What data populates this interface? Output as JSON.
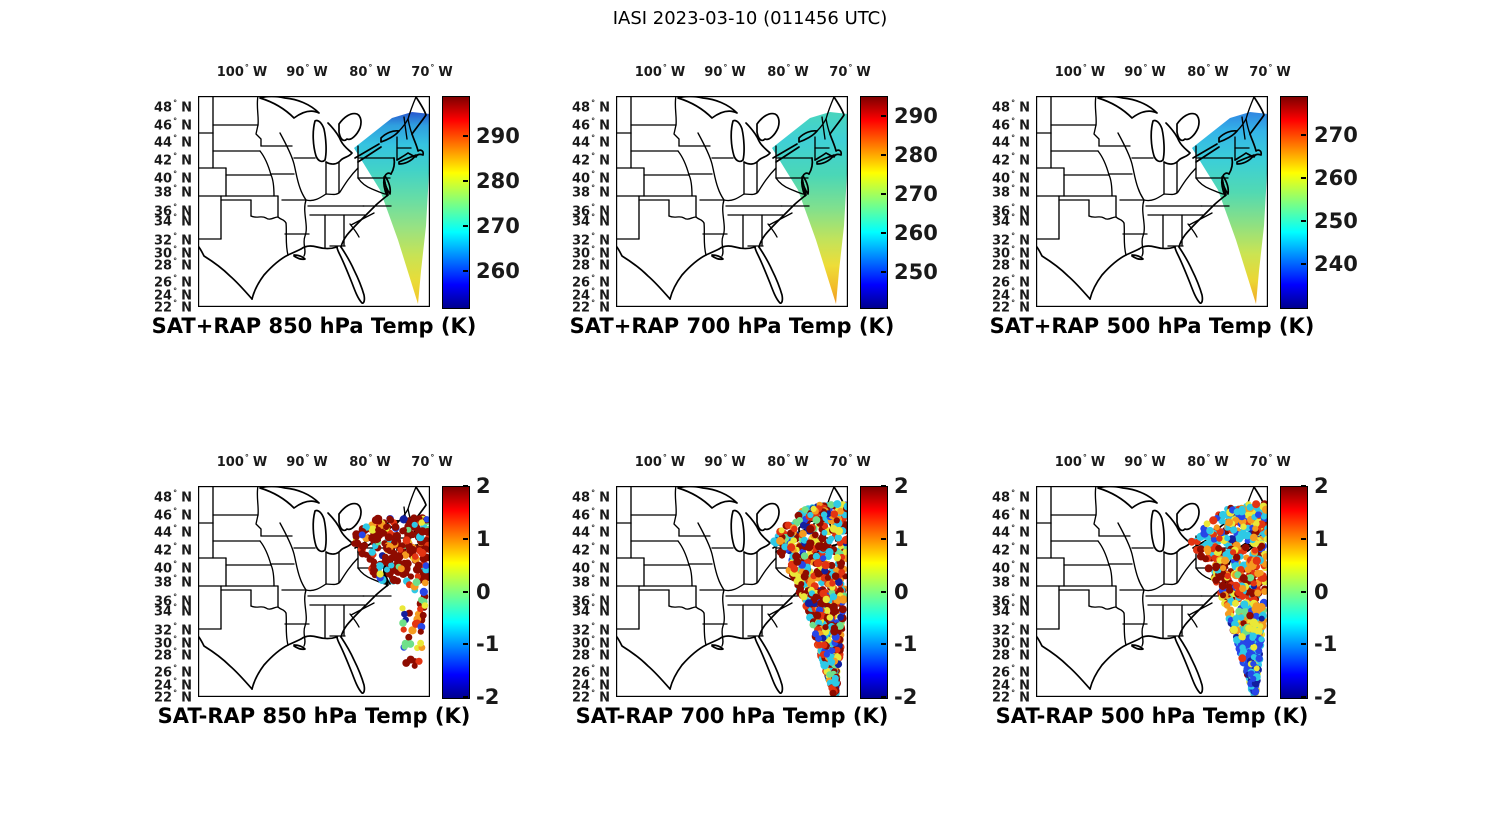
{
  "page_title": "IASI 2023-03-10 (011456 UTC)",
  "chart_data": {
    "type": "scatter",
    "description": "Six-panel geographic figure of IASI satellite soundings over the eastern United States. Top row: retrieved temperature (SAT+RAP) at 850/700/500 hPa shown as a smooth colored swath. Bottom row: satellite minus RAP model temperature differences (SAT-RAP) at the same levels shown as colored scatter dots. Data lie in a wedge-shaped satellite swath along the US east coast and western Atlantic.",
    "geo_axes": {
      "lon_ticks": [
        "100",
        "90",
        "80",
        "70"
      ],
      "lon_dir": "W",
      "lat_ticks": [
        "48",
        "46",
        "44",
        "42",
        "40",
        "38",
        "36",
        "34",
        "32",
        "30",
        "28",
        "26",
        "24",
        "22"
      ],
      "lat_dir": "N",
      "degree_symbol": "°"
    },
    "colormap": {
      "name": "jet",
      "stops": [
        "#00008f",
        "#0000ff",
        "#00ffff",
        "#7fff7f",
        "#ffff00",
        "#ff0000",
        "#7f0000"
      ]
    },
    "scatter_palette": {
      "darkred": "#8e0b00",
      "red": "#e33412",
      "orange": "#f59b20",
      "yellow": "#eae838",
      "green": "#6fe08a",
      "cyan": "#2ec9e6",
      "blue": "#2746e8",
      "darkblue": "#131f9e"
    },
    "panels": [
      {
        "title": "SAT+RAP 850 hPa Temp (K)",
        "kind": "field",
        "colorbar": {
          "vmin": 252,
          "vmax": 299,
          "ticks": [
            290,
            280,
            270,
            260
          ]
        },
        "swath_values_K": {
          "47N": 268,
          "42N": 271,
          "36N": 274,
          "30N": 279,
          "26N": 282,
          "22N": 284
        },
        "gradient": [
          [
            0,
            "#2857cf"
          ],
          [
            0.07,
            "#2f9fdf"
          ],
          [
            0.17,
            "#35c3e0"
          ],
          [
            0.3,
            "#41d2c8"
          ],
          [
            0.45,
            "#66dda6"
          ],
          [
            0.6,
            "#97e283"
          ],
          [
            0.75,
            "#c8e354"
          ],
          [
            0.88,
            "#e9dc38"
          ],
          [
            1,
            "#f2c52b"
          ]
        ]
      },
      {
        "title": "SAT+RAP 700 hPa Temp (K)",
        "kind": "field",
        "colorbar": {
          "vmin": 241,
          "vmax": 295,
          "ticks": [
            290,
            280,
            270,
            260,
            250
          ]
        },
        "swath_values_K": {
          "47N": 261,
          "42N": 262,
          "36N": 265,
          "30N": 271,
          "26N": 276,
          "22N": 281
        },
        "gradient": [
          [
            0,
            "#49d5bd"
          ],
          [
            0.15,
            "#3fd0d6"
          ],
          [
            0.33,
            "#4bd7b6"
          ],
          [
            0.5,
            "#80e08e"
          ],
          [
            0.66,
            "#c0e35c"
          ],
          [
            0.8,
            "#eedd38"
          ],
          [
            0.92,
            "#f2ba29"
          ],
          [
            1,
            "#ef9621"
          ]
        ]
      },
      {
        "title": "SAT+RAP 500 hPa Temp (K)",
        "kind": "field",
        "colorbar": {
          "vmin": 230,
          "vmax": 279,
          "ticks": [
            270,
            260,
            250,
            240
          ]
        },
        "swath_values_K": {
          "47N": 241,
          "42N": 245,
          "36N": 250,
          "30N": 256,
          "26N": 261,
          "22N": 265
        },
        "gradient": [
          [
            0,
            "#2f86e2"
          ],
          [
            0.1,
            "#34b4e8"
          ],
          [
            0.25,
            "#3bcfd8"
          ],
          [
            0.42,
            "#52d9b2"
          ],
          [
            0.58,
            "#8ce084"
          ],
          [
            0.74,
            "#cbe452"
          ],
          [
            0.88,
            "#ecd634"
          ],
          [
            1,
            "#f0a626"
          ]
        ]
      },
      {
        "title": "SAT-RAP 850 hPa Temp (K)",
        "kind": "diff",
        "colorbar": {
          "vmin": -2,
          "vmax": 2,
          "ticks": [
            2,
            1,
            0,
            -1,
            -2
          ]
        },
        "difference_summary": "Dense cluster of mostly +1.5 to +2 K (dark red) over NY, PA and New England with scattered 0 to -1 K dots; sparse column of mixed -2 to +2 K dots offshore between 30N and 38N.",
        "bands": [
          {
            "y": [
              32,
              95
            ],
            "n": 230,
            "weights": {
              "darkred": 0.7,
              "red": 0.08,
              "orange": 0.05,
              "yellow": 0.04,
              "green": 0.03,
              "cyan": 0.06,
              "blue": 0.03,
              "darkblue": 0.01
            }
          },
          {
            "y": [
              95,
              165
            ],
            "n": 40,
            "xmin": 207,
            "weights": {
              "darkred": 0.24,
              "red": 0.15,
              "orange": 0.15,
              "yellow": 0.12,
              "green": 0.08,
              "cyan": 0.14,
              "blue": 0.09,
              "darkblue": 0.03
            }
          },
          {
            "y": [
              165,
              182
            ],
            "n": 5,
            "xmin": 205,
            "weights": {
              "darkred": 0.8,
              "red": 0.2
            }
          }
        ]
      },
      {
        "title": "SAT-RAP 700 hPa Temp (K)",
        "kind": "diff",
        "colorbar": {
          "vmin": -2,
          "vmax": 2,
          "ticks": [
            2,
            1,
            0,
            -1,
            -2
          ]
        },
        "difference_summary": "Full swath of densely mixed differences; warm (+1 to +2 K, red/dark red) dominates with interspersed cool cyan/blue (-0.5 to -2 K) dots, cooler values more frequent south of 30N.",
        "bands": [
          {
            "y": [
              18,
              70
            ],
            "n": 240,
            "weights": {
              "darkred": 0.25,
              "red": 0.2,
              "orange": 0.13,
              "yellow": 0.12,
              "green": 0.05,
              "cyan": 0.12,
              "blue": 0.08,
              "darkblue": 0.05
            }
          },
          {
            "y": [
              70,
              140
            ],
            "n": 280,
            "weights": {
              "darkred": 0.32,
              "red": 0.18,
              "orange": 0.12,
              "yellow": 0.12,
              "green": 0.04,
              "cyan": 0.12,
              "blue": 0.06,
              "darkblue": 0.04
            }
          },
          {
            "y": [
              140,
              208
            ],
            "n": 260,
            "weights": {
              "darkred": 0.22,
              "red": 0.13,
              "orange": 0.1,
              "yellow": 0.14,
              "green": 0.06,
              "cyan": 0.21,
              "blue": 0.09,
              "darkblue": 0.05
            }
          }
        ]
      },
      {
        "title": "SAT-RAP 500 hPa Temp (K)",
        "kind": "diff",
        "colorbar": {
          "vmin": -2,
          "vmax": 2,
          "ticks": [
            2,
            1,
            0,
            -1,
            -2
          ]
        },
        "difference_summary": "Mixed cyan/orange differences over New England, strong warm band (+1 to +2 K) near 36-42N, mixed yellow/cyan 30-36N, and predominantly cool (-1 to -2 K, blue) south of 30N.",
        "bands": [
          {
            "y": [
              18,
              60
            ],
            "n": 200,
            "weights": {
              "cyan": 0.3,
              "blue": 0.12,
              "yellow": 0.14,
              "orange": 0.17,
              "red": 0.14,
              "darkred": 0.07,
              "green": 0.04,
              "darkblue": 0.02
            }
          },
          {
            "y": [
              60,
              115
            ],
            "n": 230,
            "weights": {
              "darkred": 0.3,
              "red": 0.24,
              "orange": 0.15,
              "yellow": 0.1,
              "cyan": 0.14,
              "green": 0.03,
              "blue": 0.03,
              "darkblue": 0.01
            }
          },
          {
            "y": [
              115,
              150
            ],
            "n": 140,
            "weights": {
              "yellow": 0.22,
              "orange": 0.19,
              "red": 0.12,
              "cyan": 0.22,
              "green": 0.08,
              "blue": 0.1,
              "darkred": 0.05,
              "darkblue": 0.02
            }
          },
          {
            "y": [
              150,
              208
            ],
            "n": 210,
            "weights": {
              "blue": 0.36,
              "cyan": 0.3,
              "darkblue": 0.13,
              "green": 0.05,
              "yellow": 0.1,
              "orange": 0.03,
              "red": 0.02,
              "darkred": 0.01
            }
          }
        ]
      }
    ]
  }
}
